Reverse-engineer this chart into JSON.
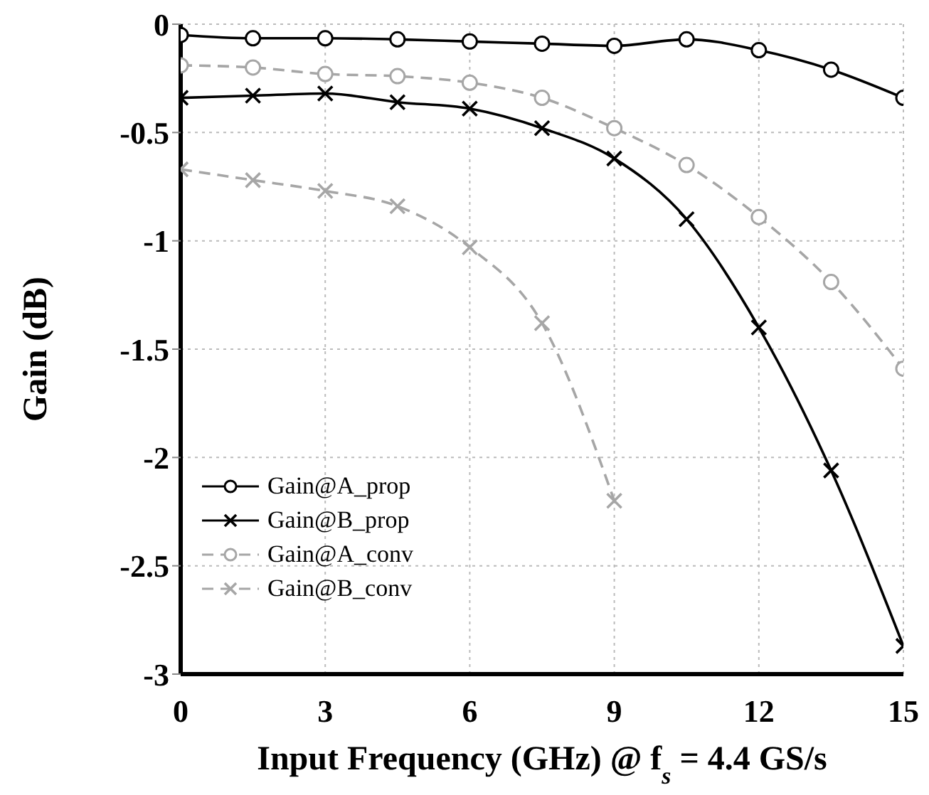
{
  "chart_data": {
    "type": "line",
    "xlabel": "Input Frequency (GHz) @ f$_{s}$ = 4.4 GS/s",
    "ylabel": "Gain (dB)",
    "x": [
      0,
      1.5,
      3,
      4.5,
      6,
      7.5,
      9,
      10.5,
      12,
      13.5,
      15
    ],
    "xlim": [
      0,
      15
    ],
    "xticks": [
      0,
      3,
      6,
      9,
      12,
      15
    ],
    "ylim": [
      -3,
      0
    ],
    "yticks": [
      -3,
      -2.5,
      -2,
      -1.5,
      -1,
      -0.5,
      0
    ],
    "grid": true,
    "legend": "bottom left",
    "series": [
      {
        "name": "Gain@A_prop",
        "color": "#000000",
        "marker": "circle",
        "line_style": "solid",
        "values": [
          -0.05,
          -0.065,
          -0.065,
          -0.07,
          -0.08,
          -0.09,
          -0.1,
          -0.07,
          -0.12,
          -0.21,
          -0.34
        ]
      },
      {
        "name": "Gain@B_prop",
        "color": "#000000",
        "marker": "cross",
        "line_style": "solid",
        "values": [
          -0.34,
          -0.33,
          -0.32,
          -0.36,
          -0.39,
          -0.48,
          -0.62,
          -0.9,
          -1.4,
          -2.06,
          -2.87
        ]
      },
      {
        "name": "Gain@A_conv",
        "color": "#a6a6a6",
        "marker": "circle",
        "line_style": "dashed",
        "values": [
          -0.19,
          -0.2,
          -0.23,
          -0.24,
          -0.27,
          -0.34,
          -0.48,
          -0.65,
          -0.89,
          -1.19,
          -1.59
        ]
      },
      {
        "name": "Gain@B_conv",
        "color": "#a6a6a6",
        "marker": "cross",
        "line_style": "dashed",
        "values": [
          -0.67,
          -0.72,
          -0.77,
          -0.84,
          -1.03,
          -1.38,
          -2.2,
          null,
          null,
          null,
          null
        ]
      }
    ]
  }
}
